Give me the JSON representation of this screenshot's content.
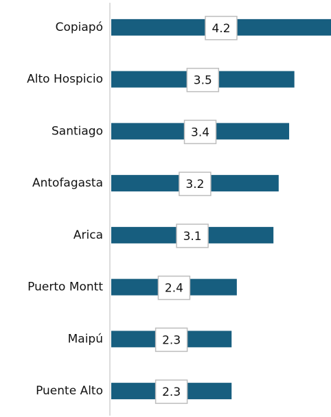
{
  "chart_data": {
    "type": "bar",
    "orientation": "horizontal",
    "categories": [
      "Copiapó",
      "Alto Hospicio",
      "Santiago",
      "Antofagasta",
      "Arica",
      "Puerto Montt",
      "Maipú",
      "Puente Alto"
    ],
    "values": [
      4.2,
      3.5,
      3.4,
      3.2,
      3.1,
      2.4,
      2.3,
      2.3
    ],
    "color": "#175e7f"
  }
}
